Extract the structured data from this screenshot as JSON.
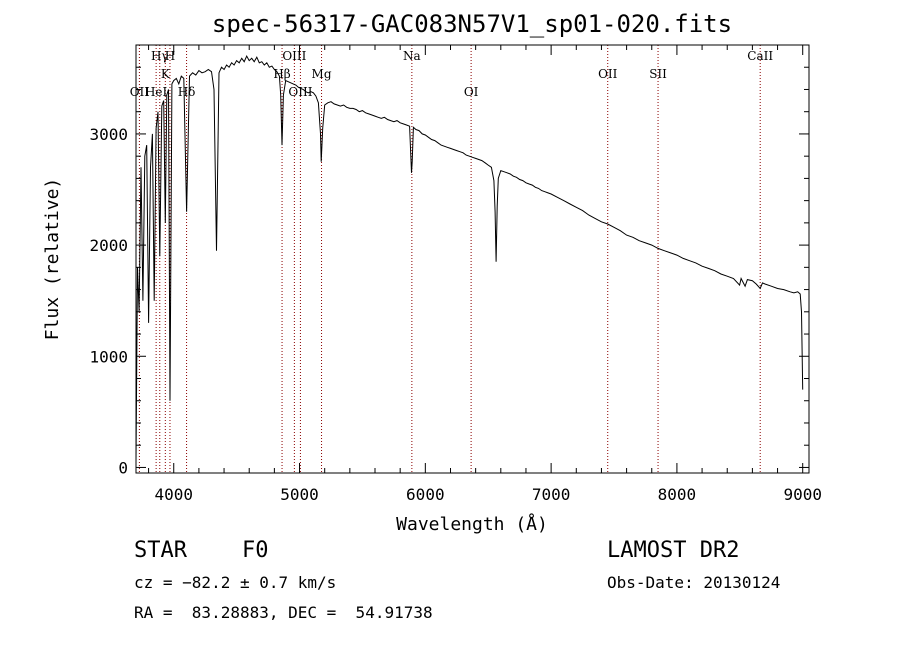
{
  "chart_data": {
    "type": "line",
    "title": "spec-56317-GAC083N57V1_sp01-020.fits",
    "xlabel": "Wavelength (Å)",
    "ylabel": "Flux (relative)",
    "xlim": [
      3700,
      9050
    ],
    "ylim": [
      -50,
      3800
    ],
    "xticks": [
      {
        "value": 4000,
        "label": "4000"
      },
      {
        "value": 5000,
        "label": "5000"
      },
      {
        "value": 6000,
        "label": "6000"
      },
      {
        "value": 7000,
        "label": "7000"
      },
      {
        "value": 8000,
        "label": "8000"
      },
      {
        "value": 9000,
        "label": "9000"
      }
    ],
    "yticks": [
      {
        "value": 0,
        "label": "0"
      },
      {
        "value": 1000,
        "label": "1000"
      },
      {
        "value": 2000,
        "label": "2000"
      },
      {
        "value": 3000,
        "label": "3000"
      }
    ],
    "grid": false,
    "line_color": "#000000",
    "marker_color": "#8b0000",
    "series": [
      {
        "points": [
          [
            3700,
            50
          ],
          [
            3712,
            1800
          ],
          [
            3725,
            1400
          ],
          [
            3740,
            2700
          ],
          [
            3755,
            1500
          ],
          [
            3770,
            2800
          ],
          [
            3785,
            2900
          ],
          [
            3800,
            1300
          ],
          [
            3815,
            2700
          ],
          [
            3830,
            3000
          ],
          [
            3845,
            1500
          ],
          [
            3860,
            3050
          ],
          [
            3875,
            3200
          ],
          [
            3889,
            1900
          ],
          [
            3905,
            3250
          ],
          [
            3920,
            3300
          ],
          [
            3933,
            2200
          ],
          [
            3945,
            3350
          ],
          [
            3958,
            3400
          ],
          [
            3970,
            600
          ],
          [
            3985,
            3450
          ],
          [
            4000,
            3480
          ],
          [
            4020,
            3500
          ],
          [
            4040,
            3450
          ],
          [
            4060,
            3520
          ],
          [
            4080,
            3500
          ],
          [
            4102,
            2300
          ],
          [
            4125,
            3520
          ],
          [
            4150,
            3550
          ],
          [
            4175,
            3530
          ],
          [
            4200,
            3570
          ],
          [
            4225,
            3550
          ],
          [
            4250,
            3560
          ],
          [
            4275,
            3580
          ],
          [
            4300,
            3560
          ],
          [
            4320,
            3400
          ],
          [
            4340,
            1950
          ],
          [
            4360,
            3550
          ],
          [
            4380,
            3600
          ],
          [
            4400,
            3580
          ],
          [
            4420,
            3620
          ],
          [
            4440,
            3600
          ],
          [
            4460,
            3640
          ],
          [
            4480,
            3620
          ],
          [
            4500,
            3660
          ],
          [
            4520,
            3640
          ],
          [
            4540,
            3680
          ],
          [
            4560,
            3650
          ],
          [
            4580,
            3700
          ],
          [
            4600,
            3660
          ],
          [
            4620,
            3680
          ],
          [
            4640,
            3650
          ],
          [
            4660,
            3690
          ],
          [
            4680,
            3640
          ],
          [
            4700,
            3650
          ],
          [
            4720,
            3620
          ],
          [
            4740,
            3640
          ],
          [
            4760,
            3600
          ],
          [
            4780,
            3610
          ],
          [
            4800,
            3580
          ],
          [
            4820,
            3560
          ],
          [
            4840,
            3520
          ],
          [
            4850,
            3350
          ],
          [
            4861,
            2900
          ],
          [
            4872,
            3350
          ],
          [
            4890,
            3480
          ],
          [
            4910,
            3470
          ],
          [
            4930,
            3460
          ],
          [
            4950,
            3450
          ],
          [
            4970,
            3440
          ],
          [
            4990,
            3420
          ],
          [
            5010,
            3410
          ],
          [
            5030,
            3400
          ],
          [
            5050,
            3380
          ],
          [
            5070,
            3370
          ],
          [
            5090,
            3380
          ],
          [
            5110,
            3370
          ],
          [
            5130,
            3340
          ],
          [
            5150,
            3280
          ],
          [
            5167,
            3000
          ],
          [
            5172,
            2750
          ],
          [
            5184,
            3050
          ],
          [
            5200,
            3260
          ],
          [
            5225,
            3280
          ],
          [
            5250,
            3290
          ],
          [
            5275,
            3270
          ],
          [
            5300,
            3260
          ],
          [
            5325,
            3250
          ],
          [
            5350,
            3260
          ],
          [
            5375,
            3240
          ],
          [
            5400,
            3230
          ],
          [
            5425,
            3230
          ],
          [
            5450,
            3220
          ],
          [
            5475,
            3200
          ],
          [
            5500,
            3210
          ],
          [
            5525,
            3190
          ],
          [
            5550,
            3180
          ],
          [
            5575,
            3170
          ],
          [
            5600,
            3160
          ],
          [
            5625,
            3150
          ],
          [
            5650,
            3140
          ],
          [
            5675,
            3150
          ],
          [
            5700,
            3130
          ],
          [
            5725,
            3120
          ],
          [
            5750,
            3110
          ],
          [
            5775,
            3120
          ],
          [
            5800,
            3100
          ],
          [
            5825,
            3090
          ],
          [
            5850,
            3080
          ],
          [
            5875,
            3070
          ],
          [
            5890,
            2650
          ],
          [
            5896,
            2750
          ],
          [
            5905,
            3060
          ],
          [
            5925,
            3040
          ],
          [
            5950,
            3030
          ],
          [
            5975,
            3000
          ],
          [
            6000,
            2990
          ],
          [
            6025,
            2970
          ],
          [
            6050,
            2950
          ],
          [
            6075,
            2940
          ],
          [
            6100,
            2920
          ],
          [
            6125,
            2900
          ],
          [
            6150,
            2890
          ],
          [
            6175,
            2880
          ],
          [
            6200,
            2870
          ],
          [
            6225,
            2860
          ],
          [
            6250,
            2850
          ],
          [
            6275,
            2840
          ],
          [
            6300,
            2830
          ],
          [
            6325,
            2810
          ],
          [
            6350,
            2800
          ],
          [
            6375,
            2790
          ],
          [
            6400,
            2780
          ],
          [
            6425,
            2770
          ],
          [
            6450,
            2760
          ],
          [
            6475,
            2740
          ],
          [
            6500,
            2720
          ],
          [
            6525,
            2700
          ],
          [
            6545,
            2580
          ],
          [
            6555,
            2300
          ],
          [
            6563,
            1850
          ],
          [
            6571,
            2350
          ],
          [
            6580,
            2600
          ],
          [
            6600,
            2670
          ],
          [
            6625,
            2660
          ],
          [
            6650,
            2650
          ],
          [
            6675,
            2640
          ],
          [
            6700,
            2620
          ],
          [
            6725,
            2610
          ],
          [
            6750,
            2590
          ],
          [
            6775,
            2580
          ],
          [
            6800,
            2560
          ],
          [
            6825,
            2550
          ],
          [
            6850,
            2540
          ],
          [
            6875,
            2520
          ],
          [
            6900,
            2510
          ],
          [
            6925,
            2490
          ],
          [
            6950,
            2480
          ],
          [
            6975,
            2470
          ],
          [
            7000,
            2460
          ],
          [
            7050,
            2430
          ],
          [
            7100,
            2400
          ],
          [
            7150,
            2370
          ],
          [
            7200,
            2340
          ],
          [
            7250,
            2310
          ],
          [
            7300,
            2270
          ],
          [
            7350,
            2240
          ],
          [
            7400,
            2210
          ],
          [
            7450,
            2190
          ],
          [
            7500,
            2160
          ],
          [
            7550,
            2130
          ],
          [
            7600,
            2090
          ],
          [
            7650,
            2070
          ],
          [
            7700,
            2040
          ],
          [
            7750,
            2020
          ],
          [
            7800,
            2000
          ],
          [
            7850,
            1970
          ],
          [
            7900,
            1950
          ],
          [
            7950,
            1930
          ],
          [
            8000,
            1910
          ],
          [
            8050,
            1880
          ],
          [
            8100,
            1860
          ],
          [
            8150,
            1840
          ],
          [
            8200,
            1810
          ],
          [
            8250,
            1790
          ],
          [
            8300,
            1770
          ],
          [
            8350,
            1740
          ],
          [
            8400,
            1720
          ],
          [
            8450,
            1700
          ],
          [
            8498,
            1640
          ],
          [
            8510,
            1700
          ],
          [
            8542,
            1630
          ],
          [
            8560,
            1690
          ],
          [
            8600,
            1680
          ],
          [
            8630,
            1650
          ],
          [
            8662,
            1610
          ],
          [
            8680,
            1660
          ],
          [
            8700,
            1650
          ],
          [
            8750,
            1630
          ],
          [
            8800,
            1610
          ],
          [
            8850,
            1600
          ],
          [
            8900,
            1580
          ],
          [
            8930,
            1570
          ],
          [
            8960,
            1580
          ],
          [
            8980,
            1560
          ],
          [
            8990,
            1400
          ],
          [
            9000,
            700
          ]
        ]
      }
    ],
    "lines": [
      {
        "label": "Hγ",
        "wavelength": 3889,
        "row": 0
      },
      {
        "label": "H",
        "wavelength": 3970,
        "row": 0
      },
      {
        "label": "K",
        "wavelength": 3933,
        "row": 1
      },
      {
        "label": "OII",
        "wavelength": 3727,
        "row": 2
      },
      {
        "label": "HeI",
        "wavelength": 3860,
        "row": 2
      },
      {
        "label": "Hδ",
        "wavelength": 4102,
        "row": 2
      },
      {
        "label": "OIII",
        "wavelength": 4959,
        "row": 0
      },
      {
        "label": "Hβ",
        "wavelength": 4861,
        "row": 1
      },
      {
        "label": "Mg",
        "wavelength": 5175,
        "row": 1
      },
      {
        "label": "OIII",
        "wavelength": 5007,
        "row": 2
      },
      {
        "label": "Na",
        "wavelength": 5893,
        "row": 0
      },
      {
        "label": "OI",
        "wavelength": 6364,
        "row": 2
      },
      {
        "label": "OII",
        "wavelength": 7450,
        "row": 1
      },
      {
        "label": "SII",
        "wavelength": 7850,
        "row": 1
      },
      {
        "label": "CaII",
        "wavelength": 8662,
        "row": 0
      }
    ]
  },
  "info": {
    "object_class": "STAR",
    "subclass": "F0",
    "cz": "cz = −82.2 ± 0.7 km/s",
    "coords": "RA =  83.28883, DEC =  54.91738",
    "survey": "LAMOST DR2",
    "obs_date": "Obs-Date: 20130124"
  }
}
